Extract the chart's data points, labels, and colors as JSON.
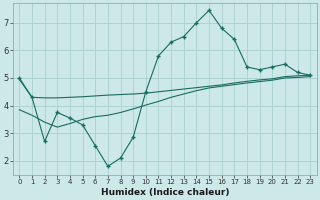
{
  "xlabel": "Humidex (Indice chaleur)",
  "bg_color": "#cce8e8",
  "grid_color": "#aacfcf",
  "line_color": "#1a6b60",
  "xlim": [
    -0.5,
    23.5
  ],
  "ylim": [
    1.5,
    7.7
  ],
  "yticks": [
    2,
    3,
    4,
    5,
    6,
    7
  ],
  "xticks": [
    0,
    1,
    2,
    3,
    4,
    5,
    6,
    7,
    8,
    9,
    10,
    11,
    12,
    13,
    14,
    15,
    16,
    17,
    18,
    19,
    20,
    21,
    22,
    23
  ],
  "line1_x": [
    0,
    1,
    2,
    3,
    4,
    5,
    6,
    7,
    8,
    9,
    10,
    11,
    12,
    13,
    14,
    15,
    16,
    17,
    18,
    19,
    20,
    21,
    22,
    23
  ],
  "line1_y": [
    5.0,
    4.3,
    2.7,
    3.75,
    3.55,
    3.3,
    2.55,
    1.8,
    2.1,
    2.85,
    4.5,
    5.8,
    6.3,
    6.5,
    7.0,
    7.45,
    6.8,
    6.4,
    5.4,
    5.3,
    5.4,
    5.5,
    5.2,
    5.1
  ],
  "line2_x": [
    0,
    1,
    2,
    3,
    4,
    5,
    6,
    7,
    8,
    9,
    10,
    11,
    12,
    13,
    14,
    15,
    16,
    17,
    18,
    19,
    20,
    21,
    22,
    23
  ],
  "line2_y": [
    4.95,
    4.3,
    4.28,
    4.28,
    4.3,
    4.32,
    4.35,
    4.38,
    4.4,
    4.42,
    4.45,
    4.5,
    4.55,
    4.6,
    4.65,
    4.7,
    4.75,
    4.82,
    4.88,
    4.93,
    4.97,
    5.05,
    5.08,
    5.1
  ],
  "line3_x": [
    0,
    1,
    2,
    3,
    4,
    5,
    6,
    7,
    8,
    9,
    10,
    11,
    12,
    13,
    14,
    15,
    16,
    17,
    18,
    19,
    20,
    21,
    22,
    23
  ],
  "line3_y": [
    3.85,
    3.65,
    3.4,
    3.22,
    3.35,
    3.5,
    3.6,
    3.65,
    3.75,
    3.88,
    4.02,
    4.15,
    4.3,
    4.42,
    4.54,
    4.64,
    4.7,
    4.76,
    4.82,
    4.87,
    4.92,
    5.0,
    5.02,
    5.05
  ]
}
